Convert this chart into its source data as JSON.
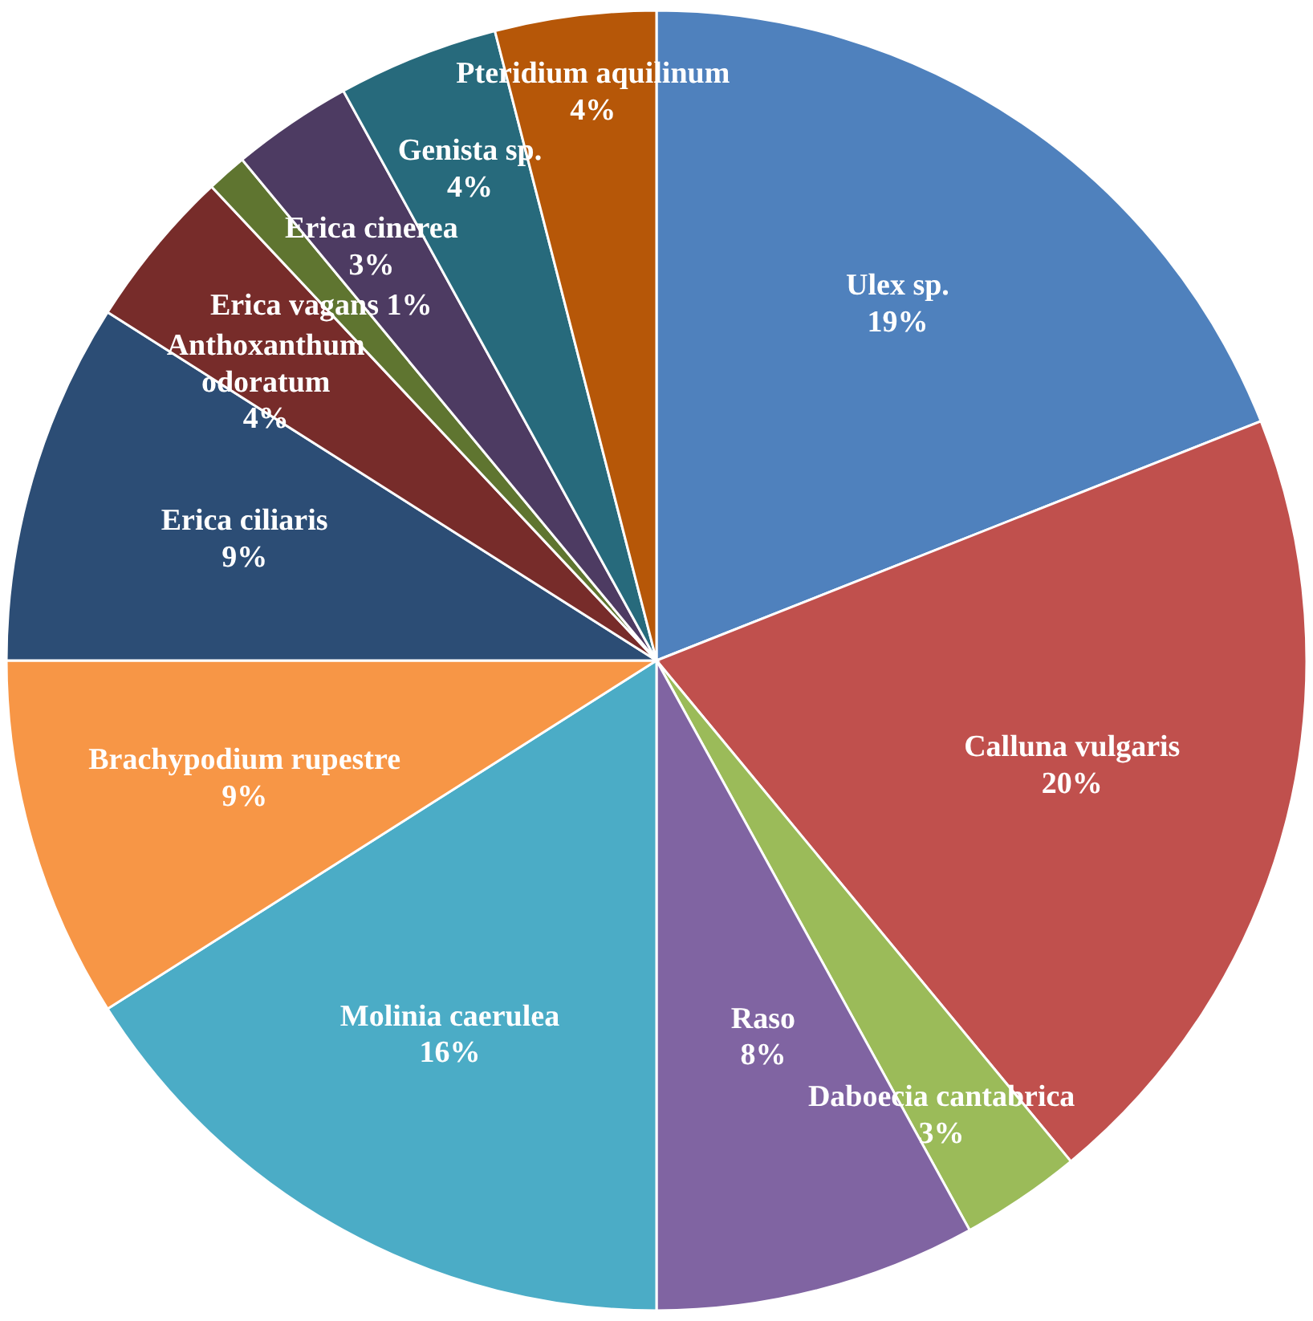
{
  "chart_data": {
    "type": "pie",
    "categories": [
      "Ulex sp.",
      "Calluna vulgaris",
      "Daboecia cantabrica",
      "Raso",
      "Molinia caerulea",
      "Brachypodium rupestre",
      "Erica ciliaris",
      "Anthoxanthum odoratum",
      "Erica vagans",
      "Erica cinerea",
      "Genista sp.",
      "Pteridium aquilinum"
    ],
    "values": [
      19,
      20,
      3,
      8,
      16,
      9,
      9,
      4,
      1,
      3,
      4,
      4
    ],
    "value_labels": [
      "19%",
      "20%",
      "3%",
      "8%",
      "16%",
      "9%",
      "9%",
      "4%",
      "1%",
      "3%",
      "4%",
      "4%"
    ],
    "colors": [
      "#4f81bd",
      "#c0504d",
      "#9bbb59",
      "#8064a2",
      "#4bacc6",
      "#f79646",
      "#2c4d75",
      "#772c2a",
      "#5f7530",
      "#4d3b62",
      "#276a7c",
      "#b65708"
    ],
    "data_labels": true
  }
}
